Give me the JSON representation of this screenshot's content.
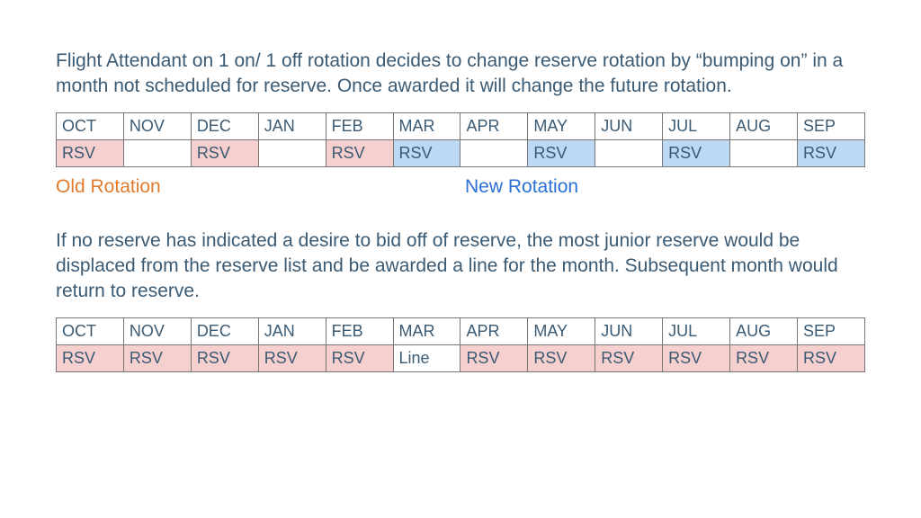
{
  "colors": {
    "text_main": "#3b5a73",
    "old_rotation": "#e07b2e",
    "new_rotation": "#2a6fd6",
    "cell_pink": "#f6cfcf",
    "cell_blue": "#bcd8f2",
    "cell_white": "#ffffff",
    "cell_header": "#ffffff",
    "border": "#777777"
  },
  "paragraph1": "Flight Attendant on 1 on/ 1 off rotation decides to change reserve rotation by “bumping on” in a month not scheduled for reserve.  Once awarded it will change the future rotation.",
  "table1": {
    "headers": [
      "OCT",
      "NOV",
      "DEC",
      "JAN",
      "FEB",
      "MAR",
      "APR",
      "MAY",
      "JUN",
      "JUL",
      "AUG",
      "SEP"
    ],
    "row": [
      {
        "text": "RSV",
        "bg": "pink"
      },
      {
        "text": "",
        "bg": "white"
      },
      {
        "text": "RSV",
        "bg": "pink"
      },
      {
        "text": "",
        "bg": "white"
      },
      {
        "text": "RSV",
        "bg": "pink"
      },
      {
        "text": "RSV",
        "bg": "blue"
      },
      {
        "text": "",
        "bg": "white"
      },
      {
        "text": "RSV",
        "bg": "blue"
      },
      {
        "text": "",
        "bg": "white"
      },
      {
        "text": "RSV",
        "bg": "blue"
      },
      {
        "text": "",
        "bg": "white"
      },
      {
        "text": "RSV",
        "bg": "blue"
      }
    ]
  },
  "labels": {
    "old": "Old Rotation",
    "new": "New Rotation"
  },
  "paragraph2": "If no reserve has indicated a desire to bid off of reserve, the most junior reserve would be displaced from the reserve list and be awarded a line for the month. Subsequent month would return to reserve.",
  "table2": {
    "headers": [
      "OCT",
      "NOV",
      "DEC",
      "JAN",
      "FEB",
      "MAR",
      "APR",
      "MAY",
      "JUN",
      "JUL",
      "AUG",
      "SEP"
    ],
    "row": [
      {
        "text": "RSV",
        "bg": "pink"
      },
      {
        "text": "RSV",
        "bg": "pink"
      },
      {
        "text": "RSV",
        "bg": "pink"
      },
      {
        "text": "RSV",
        "bg": "pink"
      },
      {
        "text": "RSV",
        "bg": "pink"
      },
      {
        "text": "Line",
        "bg": "white"
      },
      {
        "text": "RSV",
        "bg": "pink"
      },
      {
        "text": "RSV",
        "bg": "pink"
      },
      {
        "text": "RSV",
        "bg": "pink"
      },
      {
        "text": "RSV",
        "bg": "pink"
      },
      {
        "text": "RSV",
        "bg": "pink"
      },
      {
        "text": "RSV",
        "bg": "pink"
      }
    ]
  }
}
